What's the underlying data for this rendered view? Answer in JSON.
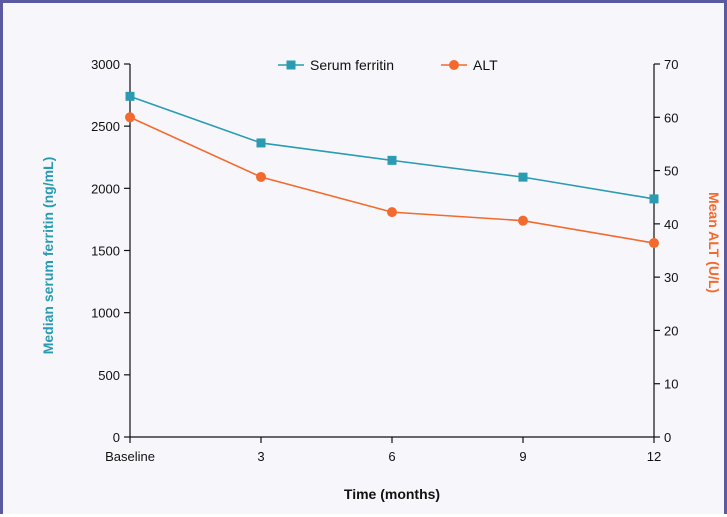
{
  "chart_data": {
    "type": "line",
    "categories": [
      "Baseline",
      "3",
      "6",
      "9",
      "12"
    ],
    "x": [
      0,
      3,
      6,
      9,
      12
    ],
    "xlabel": "Time (months)",
    "ylabel_left": "Median serum ferritin (ng/mL)",
    "ylabel_right": "Mean ALT (U/L)",
    "ylim_left": [
      0,
      3000
    ],
    "ylim_right": [
      0,
      70
    ],
    "yticks_left": [
      0,
      500,
      1000,
      1500,
      2000,
      2500,
      3000
    ],
    "yticks_right": [
      0,
      10,
      20,
      30,
      40,
      50,
      60,
      70
    ],
    "grid": false,
    "legend_position": "top-center",
    "series": [
      {
        "name": "Serum ferritin",
        "axis": "left",
        "marker": "square",
        "color": "#2a9bb0",
        "values": [
          2740,
          2365,
          2225,
          2090,
          1915
        ]
      },
      {
        "name": "ALT",
        "axis": "right",
        "marker": "circle",
        "color": "#f26a2e",
        "values": [
          60,
          48.8,
          42.2,
          40.6,
          36.4
        ]
      }
    ]
  }
}
